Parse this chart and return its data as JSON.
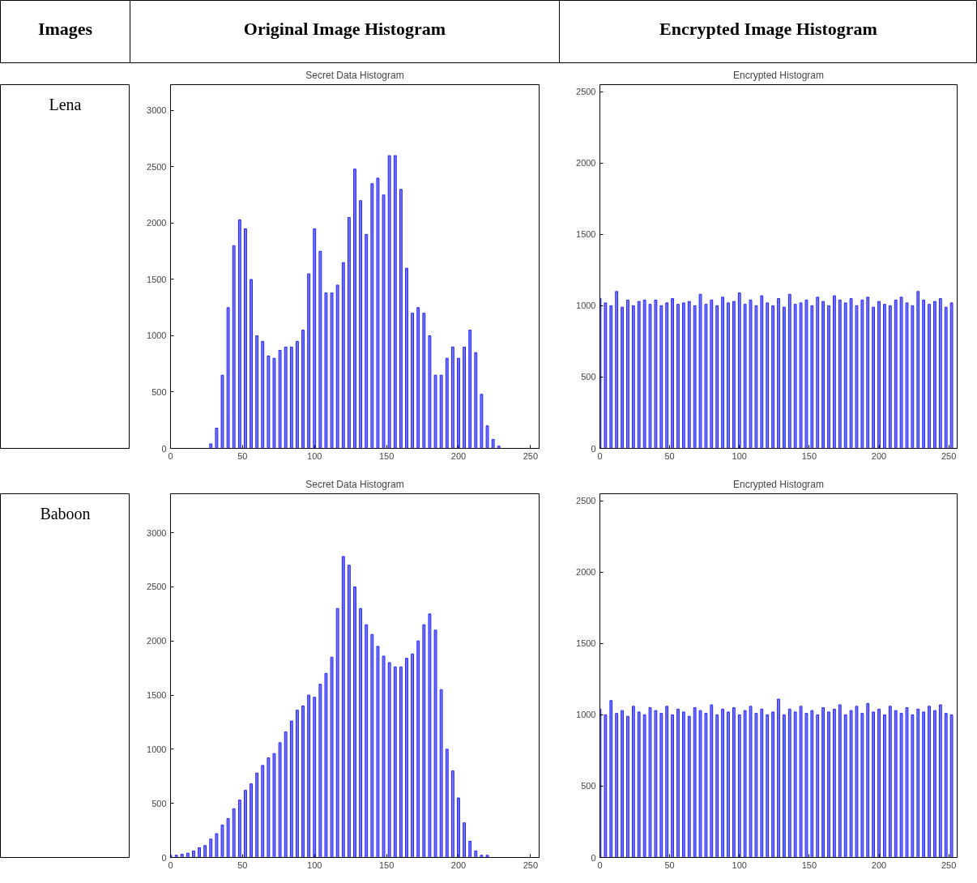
{
  "chart_data": [
    {
      "type": "other",
      "annotations": [
        "Images",
        "Original Image Histogram",
        "Encrypted Image Histogram"
      ]
    },
    {
      "type": "other",
      "annotations": [
        "Lena"
      ]
    },
    {
      "type": "bar",
      "title": "Secret Data Histogram",
      "x": [
        0,
        4,
        8,
        12,
        16,
        20,
        24,
        28,
        32,
        36,
        40,
        44,
        48,
        52,
        56,
        60,
        64,
        68,
        72,
        76,
        80,
        84,
        88,
        92,
        96,
        100,
        104,
        108,
        112,
        116,
        120,
        124,
        128,
        132,
        136,
        140,
        144,
        148,
        152,
        156,
        160,
        164,
        168,
        172,
        176,
        180,
        184,
        188,
        192,
        196,
        200,
        204,
        208,
        212,
        216,
        220,
        224,
        228,
        232,
        236,
        240,
        244,
        248,
        252
      ],
      "color": "#2020ff",
      "values": [
        0,
        0,
        0,
        0,
        0,
        0,
        0,
        40,
        180,
        650,
        1250,
        1800,
        2030,
        1950,
        1500,
        1000,
        950,
        820,
        800,
        870,
        900,
        900,
        950,
        1050,
        1550,
        1950,
        1750,
        1380,
        1380,
        1450,
        1650,
        2050,
        2480,
        2200,
        1900,
        2350,
        2400,
        2250,
        2600,
        2600,
        2300,
        1600,
        1200,
        1250,
        1200,
        1000,
        650,
        650,
        800,
        900,
        800,
        900,
        1050,
        850,
        480,
        200,
        80,
        20,
        0,
        0,
        0,
        0,
        0,
        0
      ],
      "xlim": [
        0,
        256
      ],
      "ylim": [
        0,
        3230
      ],
      "xticks": [
        0,
        50,
        100,
        150,
        200,
        250
      ],
      "yticks": [
        0,
        500,
        1000,
        1500,
        2000,
        2500,
        3000
      ],
      "grid": false
    },
    {
      "type": "bar",
      "title": "Encrypted Histogram",
      "x": [
        0,
        4,
        8,
        12,
        16,
        20,
        24,
        28,
        32,
        36,
        40,
        44,
        48,
        52,
        56,
        60,
        64,
        68,
        72,
        76,
        80,
        84,
        88,
        92,
        96,
        100,
        104,
        108,
        112,
        116,
        120,
        124,
        128,
        132,
        136,
        140,
        144,
        148,
        152,
        156,
        160,
        164,
        168,
        172,
        176,
        180,
        184,
        188,
        192,
        196,
        200,
        204,
        208,
        212,
        216,
        220,
        224,
        228,
        232,
        236,
        240,
        244,
        248,
        252
      ],
      "color": "#2020ff",
      "values": [
        1050,
        1020,
        1000,
        1100,
        990,
        1040,
        1000,
        1030,
        1040,
        1010,
        1040,
        1000,
        1020,
        1050,
        1010,
        1020,
        1030,
        1000,
        1080,
        1010,
        1040,
        1000,
        1060,
        1020,
        1030,
        1090,
        1010,
        1040,
        1000,
        1070,
        1020,
        1000,
        1050,
        990,
        1080,
        1010,
        1020,
        1040,
        1000,
        1060,
        1030,
        1000,
        1070,
        1040,
        1020,
        1050,
        1000,
        1040,
        1060,
        990,
        1030,
        1010,
        1000,
        1040,
        1060,
        1020,
        1000,
        1100,
        1040,
        1010,
        1030,
        1050,
        990,
        1020
      ],
      "xlim": [
        0,
        256
      ],
      "ylim": [
        0,
        2550
      ],
      "xticks": [
        0,
        50,
        100,
        150,
        200,
        250
      ],
      "yticks": [
        0,
        500,
        1000,
        1500,
        2000,
        2500
      ],
      "grid": false
    },
    {
      "type": "other",
      "annotations": [
        "Baboon"
      ]
    },
    {
      "type": "bar",
      "title": "Secret Data Histogram",
      "x": [
        0,
        4,
        8,
        12,
        16,
        20,
        24,
        28,
        32,
        36,
        40,
        44,
        48,
        52,
        56,
        60,
        64,
        68,
        72,
        76,
        80,
        84,
        88,
        92,
        96,
        100,
        104,
        108,
        112,
        116,
        120,
        124,
        128,
        132,
        136,
        140,
        144,
        148,
        152,
        156,
        160,
        164,
        168,
        172,
        176,
        180,
        184,
        188,
        192,
        196,
        200,
        204,
        208,
        212,
        216,
        220,
        224,
        228,
        232,
        236,
        240,
        244,
        248,
        252
      ],
      "color": "#2020ff",
      "values": [
        20,
        20,
        30,
        40,
        60,
        90,
        110,
        170,
        220,
        300,
        360,
        450,
        530,
        620,
        680,
        780,
        850,
        920,
        960,
        1060,
        1160,
        1260,
        1360,
        1400,
        1500,
        1480,
        1600,
        1700,
        1850,
        2300,
        2780,
        2700,
        2500,
        2300,
        2150,
        2060,
        1950,
        1860,
        1800,
        1760,
        1760,
        1840,
        1880,
        2000,
        2150,
        2250,
        2100,
        1550,
        1000,
        800,
        550,
        320,
        150,
        60,
        20,
        20,
        0,
        0,
        0,
        0,
        0,
        0,
        0,
        0
      ],
      "xlim": [
        0,
        256
      ],
      "ylim": [
        0,
        3360
      ],
      "xticks": [
        0,
        50,
        100,
        150,
        200,
        250
      ],
      "yticks": [
        0,
        500,
        1000,
        1500,
        2000,
        2500,
        3000
      ],
      "grid": false
    },
    {
      "type": "bar",
      "title": "Encrypted Histogram",
      "x": [
        0,
        4,
        8,
        12,
        16,
        20,
        24,
        28,
        32,
        36,
        40,
        44,
        48,
        52,
        56,
        60,
        64,
        68,
        72,
        76,
        80,
        84,
        88,
        92,
        96,
        100,
        104,
        108,
        112,
        116,
        120,
        124,
        128,
        132,
        136,
        140,
        144,
        148,
        152,
        156,
        160,
        164,
        168,
        172,
        176,
        180,
        184,
        188,
        192,
        196,
        200,
        204,
        208,
        212,
        216,
        220,
        224,
        228,
        232,
        236,
        240,
        244,
        248,
        252
      ],
      "color": "#2020ff",
      "values": [
        1040,
        1000,
        1100,
        1010,
        1030,
        990,
        1060,
        1020,
        1000,
        1050,
        1030,
        1010,
        1060,
        1000,
        1040,
        1020,
        990,
        1050,
        1030,
        1010,
        1070,
        1000,
        1040,
        1020,
        1050,
        1000,
        1030,
        1060,
        1010,
        1040,
        1000,
        1020,
        1110,
        1000,
        1040,
        1020,
        1060,
        1010,
        1030,
        1000,
        1050,
        1020,
        1040,
        1070,
        1000,
        1030,
        1060,
        1010,
        1080,
        1020,
        1040,
        1000,
        1060,
        1030,
        1010,
        1050,
        1000,
        1040,
        1020,
        1060,
        1030,
        1070,
        1010,
        1000
      ],
      "xlim": [
        0,
        256
      ],
      "ylim": [
        0,
        2550
      ],
      "xticks": [
        0,
        50,
        100,
        150,
        200,
        250
      ],
      "yticks": [
        0,
        500,
        1000,
        1500,
        2000,
        2500
      ],
      "grid": false
    }
  ]
}
